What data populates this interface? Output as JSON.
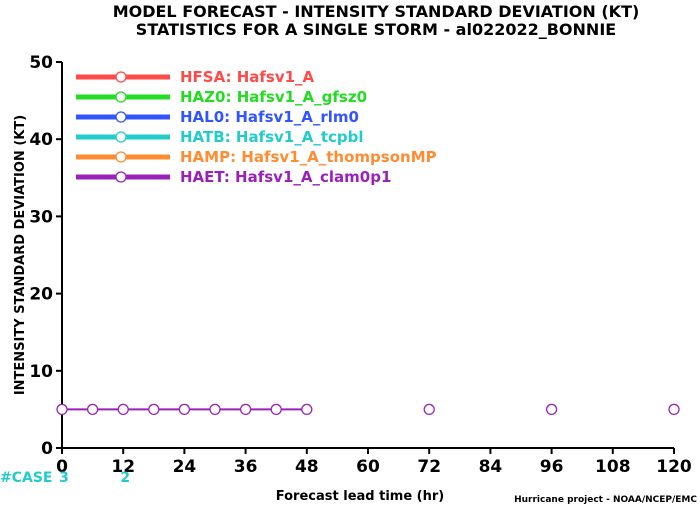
{
  "chart_data": {
    "type": "line",
    "title_line1": "MODEL FORECAST - INTENSITY STANDARD DEVIATION (KT)",
    "title_line2": "STATISTICS FOR A SINGLE STORM - al022022_BONNIE",
    "xlabel": "Forecast lead time (hr)",
    "ylabel": "INTENSITY STANDARD DEVIATION (KT)",
    "xlim": [
      0,
      120
    ],
    "ylim": [
      0,
      50
    ],
    "x_ticks": [
      0,
      12,
      24,
      36,
      48,
      60,
      72,
      84,
      96,
      108,
      120
    ],
    "y_ticks": [
      0,
      10,
      20,
      30,
      40,
      50
    ],
    "legend_position": "top-left",
    "grid": false,
    "series": [
      {
        "name": "HFSA: Hafsv1_A",
        "color": "#ff4a4a",
        "x": [],
        "y": []
      },
      {
        "name": "HAZ0: Hafsv1_A_gfsz0",
        "color": "#22dd22",
        "x": [],
        "y": []
      },
      {
        "name": "HAL0: Hafsv1_A_rlm0",
        "color": "#3355ff",
        "x": [],
        "y": []
      },
      {
        "name": "HATB: Hafsv1_A_tcpbl",
        "color": "#22cccc",
        "x": [],
        "y": []
      },
      {
        "name": "HAMP: Hafsv1_A_thompsonMP",
        "color": "#ff8c33",
        "x": [],
        "y": []
      },
      {
        "name": "HAET: Hafsv1_A_clam0p1",
        "color": "#9922bb",
        "x": [
          0,
          6,
          12,
          18,
          24,
          30,
          36,
          42,
          48
        ],
        "y": [
          5,
          5,
          5,
          5,
          5,
          5,
          5,
          5,
          5
        ]
      }
    ],
    "extra_markers": {
      "color": "#9922bb",
      "x": [
        72,
        96,
        120
      ],
      "y": [
        5,
        5,
        5
      ]
    },
    "case_counts": {
      "label": "#CASE",
      "color": "#22cccc",
      "entries": [
        {
          "x": 0,
          "count": "3"
        },
        {
          "x": 12,
          "count": "2"
        }
      ]
    },
    "credit": "Hurricane project - NOAA/NCEP/EMC"
  }
}
